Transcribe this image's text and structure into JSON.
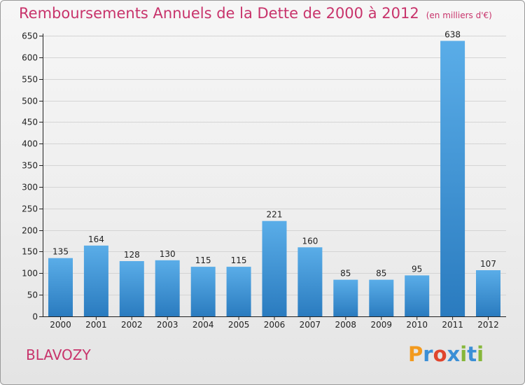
{
  "header": {
    "title": "Remboursements Annuels de la Dette de 2000 à 2012",
    "subtitle": "(en milliers d'€)"
  },
  "footer": {
    "commune": "BLAVOZY",
    "logo_text": "Proxiti",
    "logo_colors": [
      "#f39a1e",
      "#3b8fd6",
      "#e0452d",
      "#86b73a"
    ]
  },
  "colors": {
    "title": "#c8336b",
    "bar_top": "#5aade8",
    "bar_bottom": "#2a7bbf"
  },
  "chart_data": {
    "type": "bar",
    "title": "Remboursements Annuels de la Dette de 2000 à 2012",
    "subtitle": "(en milliers d'€)",
    "categories": [
      "2000",
      "2001",
      "2002",
      "2003",
      "2004",
      "2005",
      "2006",
      "2007",
      "2008",
      "2009",
      "2010",
      "2011",
      "2012"
    ],
    "values": [
      135,
      164,
      128,
      130,
      115,
      115,
      221,
      160,
      85,
      85,
      95,
      638,
      107
    ],
    "xlabel": "",
    "ylabel": "",
    "ylim": [
      0,
      650
    ],
    "yticks": [
      0,
      50,
      100,
      150,
      200,
      250,
      300,
      350,
      400,
      450,
      500,
      550,
      600,
      650
    ],
    "grid": true,
    "legend": "none"
  }
}
